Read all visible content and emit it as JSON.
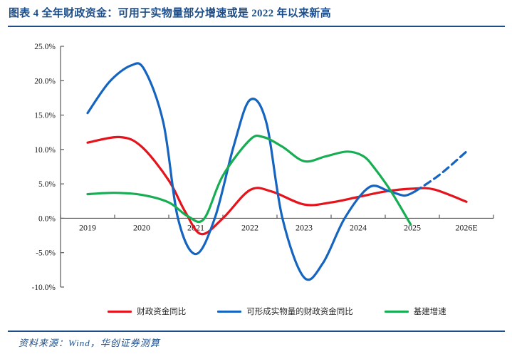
{
  "title": "图表 4  全年财政资金：可用于实物量部分增速或是 2022 年以来新高",
  "footer": {
    "source_label": "资料来源：Wind，华创证券测算"
  },
  "colors": {
    "navy": "#1d4e89",
    "axis": "#595959",
    "tick_label": "#1a1a1a",
    "red": "#e4131c",
    "blue": "#1565c0",
    "green": "#17ad53"
  },
  "chart_data": {
    "type": "line",
    "title": "",
    "xlabel": "",
    "ylabel": "",
    "x_axis": {
      "labels": [
        "2019",
        "2020",
        "2021",
        "2022",
        "2023",
        "2024",
        "2025",
        "2026E"
      ],
      "label_placement": "below-zero-line"
    },
    "y_axis": {
      "min": -10,
      "max": 25,
      "step": 5,
      "unit": "%",
      "ticks": [
        {
          "value": 25,
          "label": "25.0%"
        },
        {
          "value": 20,
          "label": "20.0%"
        },
        {
          "value": 15,
          "label": "15.0%"
        },
        {
          "value": 10,
          "label": "10.0%"
        },
        {
          "value": 5,
          "label": "5.0%"
        },
        {
          "value": 0,
          "label": "0.0%"
        },
        {
          "value": -5,
          "label": "-5.0%"
        },
        {
          "value": -10,
          "label": "-10.0%"
        }
      ]
    },
    "grid": false,
    "legend_position": "bottom",
    "series": [
      {
        "id": "series-fiscal-funds-yoy",
        "name": "财政资金同比",
        "color": "#e4131c",
        "style": "solid",
        "points": [
          [
            2019.0,
            11.0
          ],
          [
            2019.6,
            11.8
          ],
          [
            2020.0,
            10.4
          ],
          [
            2020.5,
            5.5
          ],
          [
            2020.8,
            1.0
          ],
          [
            2021.1,
            -2.3
          ],
          [
            2021.5,
            0.0
          ],
          [
            2022.0,
            4.1
          ],
          [
            2022.4,
            3.9
          ],
          [
            2023.0,
            2.0
          ],
          [
            2023.5,
            2.3
          ],
          [
            2024.0,
            3.1
          ],
          [
            2024.5,
            3.9
          ],
          [
            2025.0,
            4.3
          ],
          [
            2025.4,
            4.2
          ],
          [
            2026.0,
            2.4
          ]
        ]
      },
      {
        "id": "series-physical-fiscal-funds-yoy",
        "name": "可形成实物量的财政资金同比",
        "color": "#1565c0",
        "style": "solid",
        "points": [
          [
            2019.0,
            15.3
          ],
          [
            2019.4,
            19.8
          ],
          [
            2019.8,
            22.2
          ],
          [
            2020.05,
            21.6
          ],
          [
            2020.4,
            13.9
          ],
          [
            2020.67,
            0.0
          ],
          [
            2021.0,
            -5.2
          ],
          [
            2021.35,
            0.0
          ],
          [
            2021.7,
            10.5
          ],
          [
            2022.0,
            17.2
          ],
          [
            2022.3,
            14.0
          ],
          [
            2022.6,
            0.0
          ],
          [
            2023.0,
            -8.6
          ],
          [
            2023.35,
            -6.5
          ],
          [
            2023.75,
            0.0
          ],
          [
            2024.2,
            4.5
          ],
          [
            2024.55,
            4.0
          ],
          [
            2024.85,
            3.3
          ],
          [
            2025.05,
            3.9
          ]
        ]
      },
      {
        "id": "series-physical-fiscal-funds-yoy-forecast",
        "name": "可形成实物量的财政资金同比（预测虚线段）",
        "color": "#1565c0",
        "style": "dashed",
        "in_legend": false,
        "points": [
          [
            2025.05,
            3.9
          ],
          [
            2025.5,
            6.3
          ],
          [
            2026.0,
            9.7
          ]
        ]
      },
      {
        "id": "series-infrastructure-growth",
        "name": "基建增速",
        "color": "#17ad53",
        "style": "solid",
        "points": [
          [
            2019.0,
            3.5
          ],
          [
            2019.5,
            3.7
          ],
          [
            2020.0,
            3.4
          ],
          [
            2020.5,
            2.3
          ],
          [
            2020.85,
            0.3
          ],
          [
            2021.15,
            -0.1
          ],
          [
            2021.5,
            6.2
          ],
          [
            2022.0,
            11.4
          ],
          [
            2022.25,
            11.8
          ],
          [
            2022.6,
            10.4
          ],
          [
            2023.0,
            8.3
          ],
          [
            2023.4,
            9.0
          ],
          [
            2023.8,
            9.7
          ],
          [
            2024.1,
            9.0
          ],
          [
            2024.3,
            7.3
          ],
          [
            2024.6,
            4.0
          ],
          [
            2024.97,
            -0.9
          ]
        ]
      }
    ],
    "legend": [
      {
        "label": "财政资金同比",
        "color": "#e4131c"
      },
      {
        "label": "可形成实物量的财政资金同比",
        "color": "#1565c0"
      },
      {
        "label": "基建增速",
        "color": "#17ad53"
      }
    ]
  }
}
